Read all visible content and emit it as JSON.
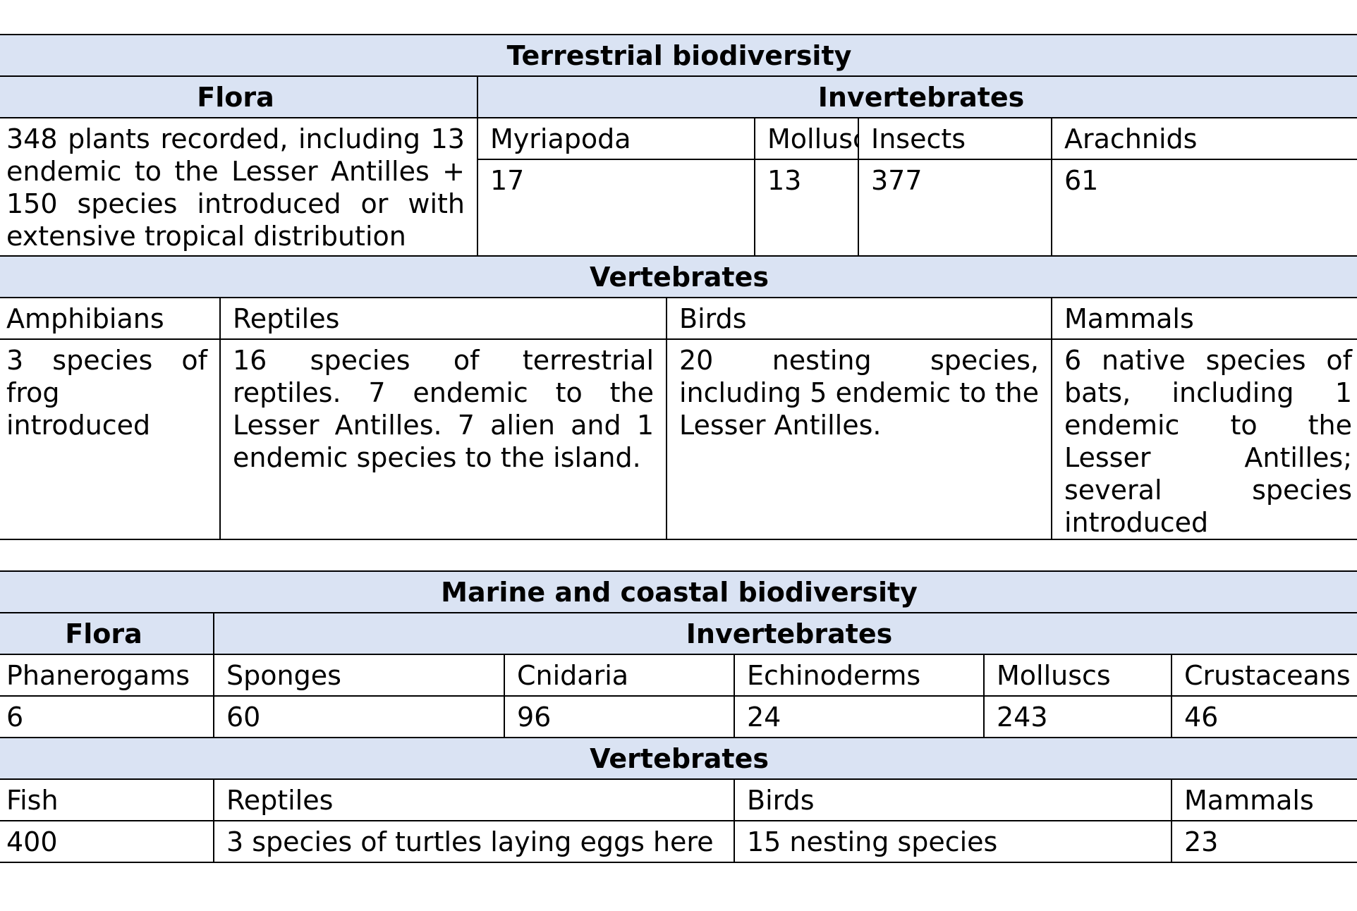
{
  "terrestrial": {
    "title": "Terrestrial biodiversity",
    "flora_heading": "Flora",
    "invertebrates_heading": "Invertebrates",
    "flora_text": "348 plants recorded, including 13 endemic to the Lesser Antilles + 150 species introduced or with extensive tropical distribution",
    "invertebrates": {
      "headers": [
        "Myriapoda",
        "Molluscs",
        "Insects",
        "Arachnids"
      ],
      "values": [
        "17",
        "13",
        "377",
        "61"
      ]
    },
    "vertebrates_heading": "Vertebrates",
    "vertebrates": {
      "headers": [
        "Amphibians",
        "Reptiles",
        "Birds",
        "Mammals"
      ],
      "values": [
        "3 species of frog introduced",
        "16 species of terrestrial reptiles. 7 endemic to the Lesser Antilles. 7 alien and 1 endemic species to the island.",
        "20 nesting species, including 5 endemic to the Lesser Antilles.",
        "6 native species of bats, including 1 endemic to the Lesser Antilles; several species introduced"
      ]
    }
  },
  "marine": {
    "title": "Marine and coastal biodiversity",
    "flora_heading": "Flora",
    "invertebrates_heading": "Invertebrates",
    "row_headers": [
      "Phanerogams",
      "Sponges",
      "Cnidaria",
      "Echinoderms",
      "Molluscs",
      "Crustaceans"
    ],
    "row_values": [
      "6",
      "60",
      "96",
      "24",
      "243",
      "46"
    ],
    "vertebrates_heading": "Vertebrates",
    "vertebrates": {
      "headers": [
        "Fish",
        "Reptiles",
        "Birds",
        "Mammals"
      ],
      "values": [
        "400",
        "3 species of turtles laying eggs here",
        "15 nesting species",
        "23"
      ]
    }
  }
}
